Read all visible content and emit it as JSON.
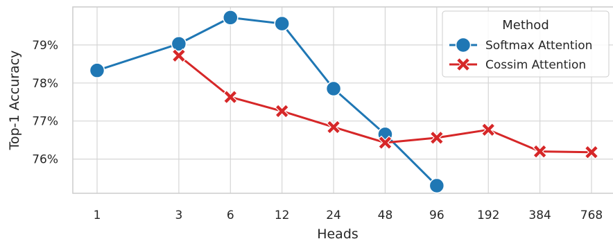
{
  "chart_data": {
    "type": "line",
    "xlabel": "Heads",
    "ylabel": "Top-1 Accuracy",
    "x_ticks": [
      "1",
      "3",
      "6",
      "12",
      "24",
      "48",
      "96",
      "192",
      "384",
      "768"
    ],
    "y_ticks": [
      "76%",
      "77%",
      "78%",
      "79%"
    ],
    "y_tick_values": [
      76,
      77,
      78,
      79
    ],
    "ylim": [
      75.1,
      80.0
    ],
    "x_scale": "log2",
    "grid": true,
    "legend": {
      "title": "Method",
      "placement": "top-right"
    },
    "series": [
      {
        "name": "Softmax Attention",
        "marker": "circle",
        "color": "#1f77b4",
        "x": [
          1,
          3,
          6,
          12,
          24,
          48,
          96
        ],
        "y": [
          78.33,
          79.03,
          79.72,
          79.56,
          77.85,
          76.65,
          75.3
        ]
      },
      {
        "name": "Cossim Attention",
        "marker": "x",
        "color": "#d62728",
        "x": [
          3,
          6,
          12,
          24,
          48,
          96,
          192,
          384,
          768
        ],
        "y": [
          78.72,
          77.63,
          77.26,
          76.84,
          76.43,
          76.56,
          76.77,
          76.2,
          76.18
        ]
      }
    ]
  }
}
